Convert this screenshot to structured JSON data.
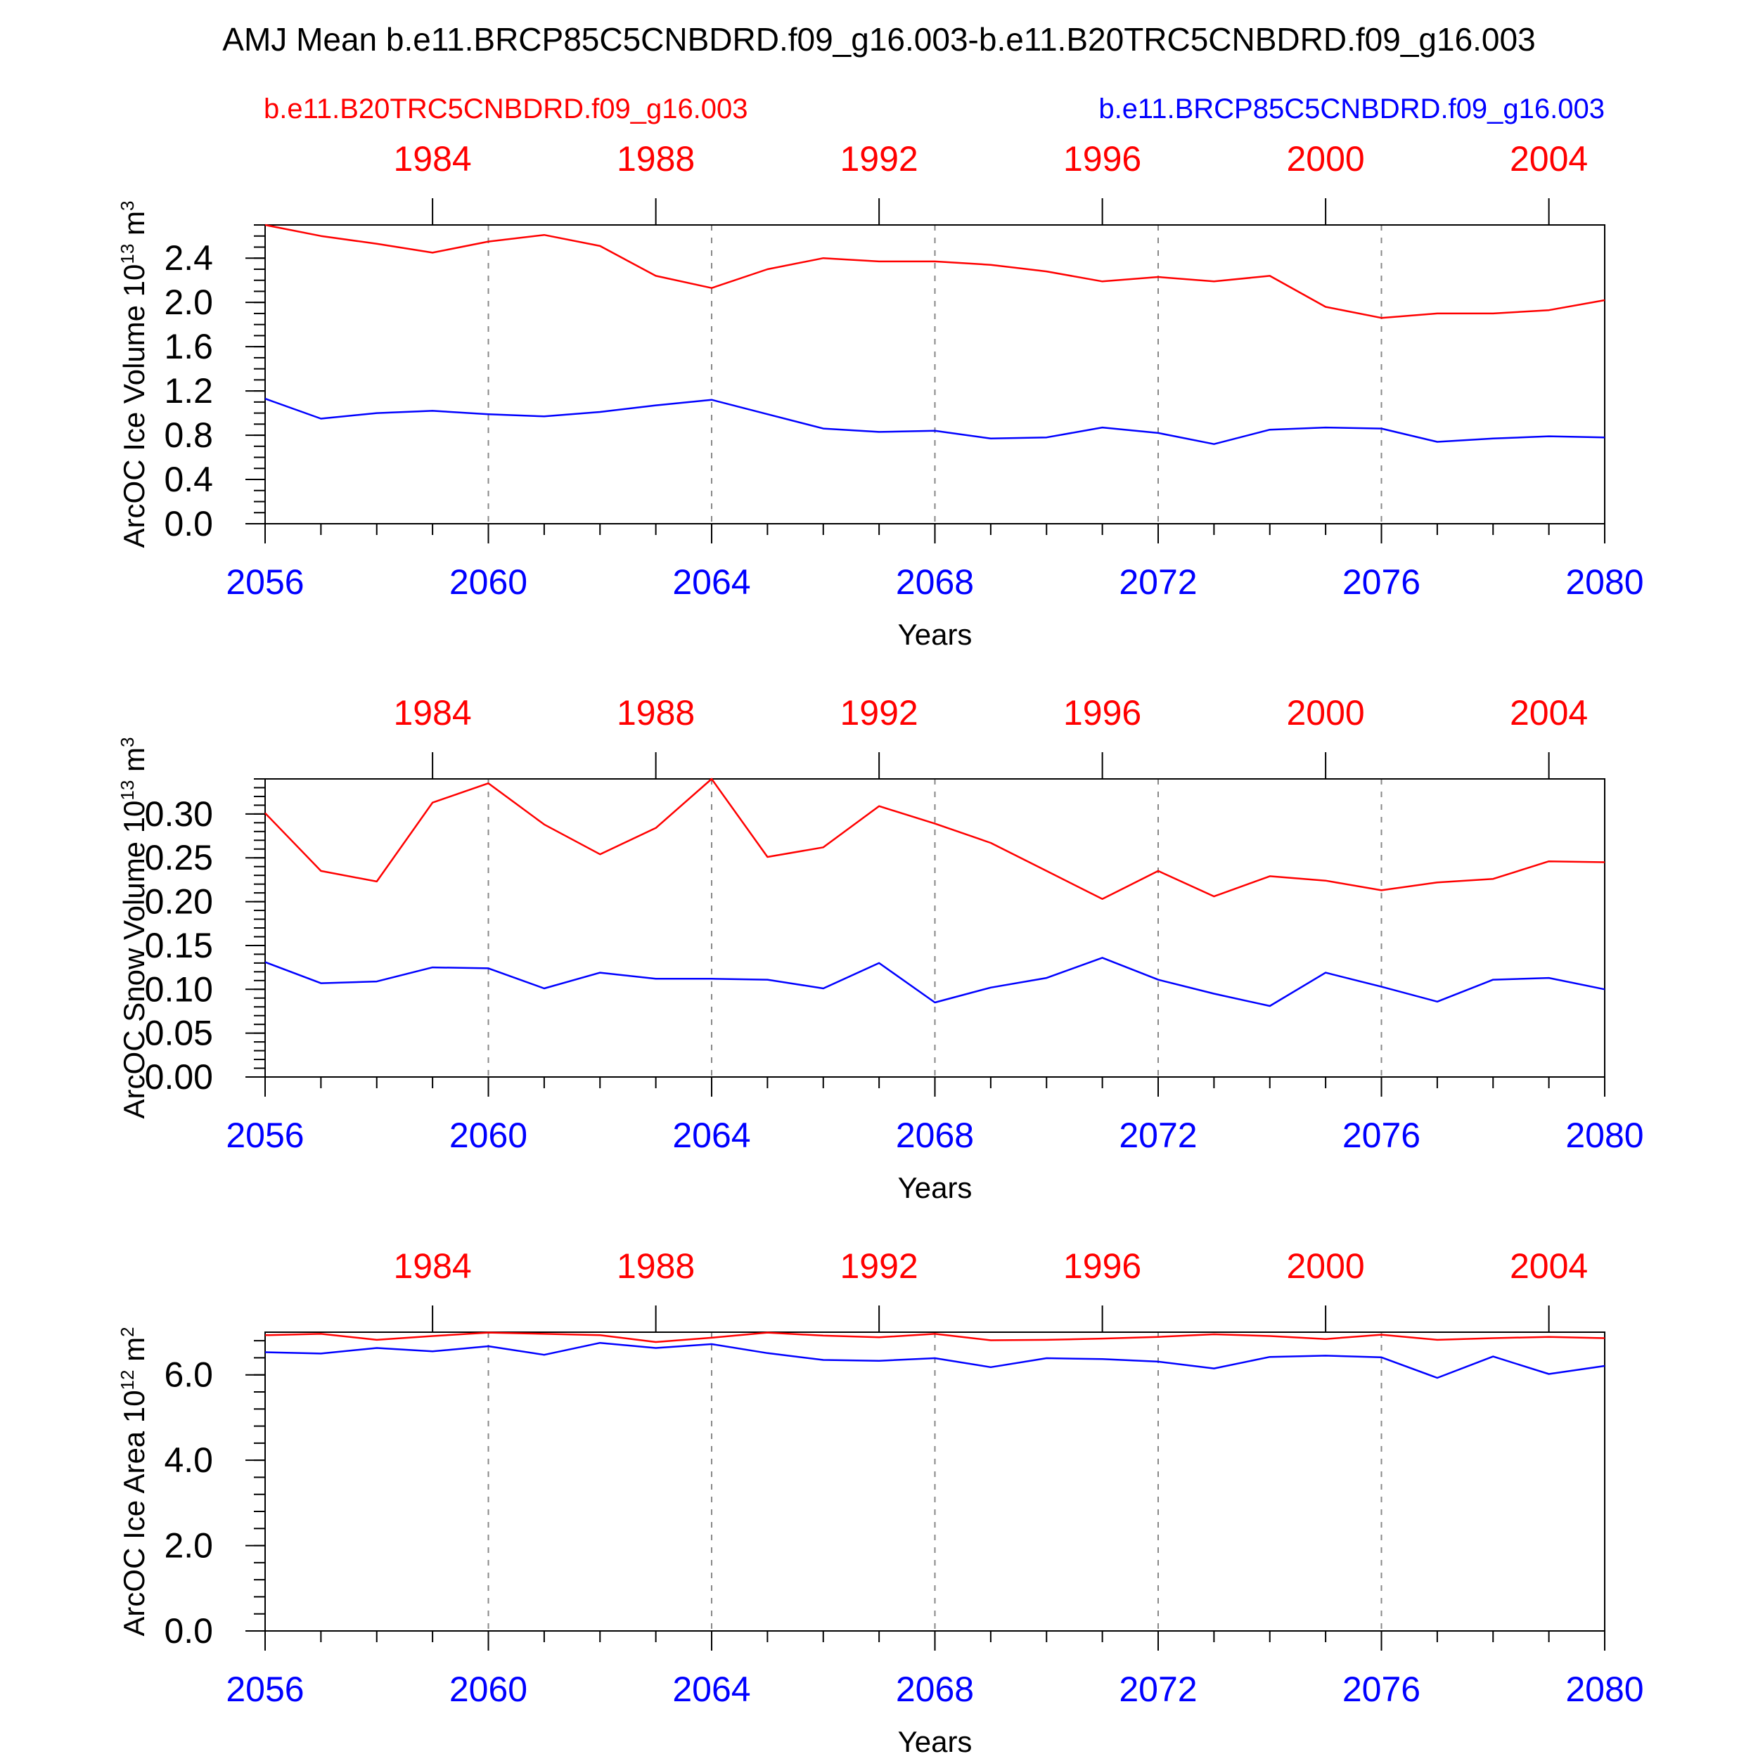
{
  "title": "AMJ Mean b.e11.BRCP85C5CNBDRD.f09_g16.003-b.e11.B20TRC5CNBDRD.f09_g16.003",
  "legend": {
    "red_label": "b.e11.B20TRC5CNBDRD.f09_g16.003",
    "blue_label": "b.e11.BRCP85C5CNBDRD.f09_g16.003",
    "red_color": "#ff0000",
    "blue_color": "#0000ff"
  },
  "colors": {
    "red": "#ff0000",
    "blue": "#0000ff",
    "axis": "#000000",
    "grid": "#888888"
  },
  "chart_data": [
    {
      "type": "line",
      "ylabel": "ArcOC Ice Volume 10",
      "ylabel_exp": "13",
      "ylabel_unit": " m",
      "ylabel_unit_exp": "3",
      "xlabel": "Years",
      "xlim": [
        2056,
        2080
      ],
      "ylim": [
        0,
        2.7
      ],
      "yticks": [
        0.0,
        0.4,
        0.8,
        1.2,
        1.6,
        2.0,
        2.4
      ],
      "ytick_labels": [
        "0.0",
        "0.4",
        "0.8",
        "1.2",
        "1.6",
        "2.0",
        "2.4"
      ],
      "yminor_step": 0.1,
      "xticks_bottom": [
        2056,
        2060,
        2064,
        2068,
        2072,
        2076,
        2080
      ],
      "xtick_labels_bottom": [
        "2056",
        "2060",
        "2064",
        "2068",
        "2072",
        "2076",
        "2080"
      ],
      "xticks_top": [
        2059,
        2063,
        2067,
        2071,
        2075,
        2079
      ],
      "xtick_labels_top": [
        "1984",
        "1988",
        "1992",
        "1996",
        "2000",
        "2004"
      ],
      "grid_x": [
        2060,
        2064,
        2068,
        2072,
        2076
      ],
      "x": [
        2056,
        2057,
        2058,
        2059,
        2060,
        2061,
        2062,
        2063,
        2064,
        2065,
        2066,
        2067,
        2068,
        2069,
        2070,
        2071,
        2072,
        2073,
        2074,
        2075,
        2076,
        2077,
        2078,
        2079,
        2080
      ],
      "series": [
        {
          "name": "b.e11.B20TRC5CNBDRD.f09_g16.003",
          "color": "#ff0000",
          "values": [
            2.7,
            2.6,
            2.53,
            2.45,
            2.55,
            2.61,
            2.51,
            2.24,
            2.13,
            2.3,
            2.4,
            2.37,
            2.37,
            2.34,
            2.28,
            2.19,
            2.23,
            2.19,
            2.24,
            1.96,
            1.86,
            1.9,
            1.9,
            1.93,
            2.02
          ]
        },
        {
          "name": "b.e11.BRCP85C5CNBDRD.f09_g16.003",
          "color": "#0000ff",
          "values": [
            1.13,
            0.95,
            1.0,
            1.02,
            0.99,
            0.97,
            1.01,
            1.07,
            1.12,
            0.99,
            0.86,
            0.83,
            0.84,
            0.77,
            0.78,
            0.87,
            0.82,
            0.72,
            0.85,
            0.87,
            0.86,
            0.74,
            0.77,
            0.79,
            0.78
          ]
        }
      ]
    },
    {
      "type": "line",
      "ylabel": "ArcOC Snow Volume 10",
      "ylabel_exp": "13",
      "ylabel_unit": " m",
      "ylabel_unit_exp": "3",
      "xlabel": "Years",
      "xlim": [
        2056,
        2080
      ],
      "ylim": [
        0,
        0.34
      ],
      "yticks": [
        0.0,
        0.05,
        0.1,
        0.15,
        0.2,
        0.25,
        0.3
      ],
      "ytick_labels": [
        "0.00",
        "0.05",
        "0.10",
        "0.15",
        "0.20",
        "0.25",
        "0.30"
      ],
      "yminor_step": 0.01,
      "xticks_bottom": [
        2056,
        2060,
        2064,
        2068,
        2072,
        2076,
        2080
      ],
      "xtick_labels_bottom": [
        "2056",
        "2060",
        "2064",
        "2068",
        "2072",
        "2076",
        "2080"
      ],
      "xticks_top": [
        2059,
        2063,
        2067,
        2071,
        2075,
        2079
      ],
      "xtick_labels_top": [
        "1984",
        "1988",
        "1992",
        "1996",
        "2000",
        "2004"
      ],
      "grid_x": [
        2060,
        2064,
        2068,
        2072,
        2076
      ],
      "x": [
        2056,
        2057,
        2058,
        2059,
        2060,
        2061,
        2062,
        2063,
        2064,
        2065,
        2066,
        2067,
        2068,
        2069,
        2070,
        2071,
        2072,
        2073,
        2074,
        2075,
        2076,
        2077,
        2078,
        2079,
        2080
      ],
      "series": [
        {
          "name": "b.e11.B20TRC5CNBDRD.f09_g16.003",
          "color": "#ff0000",
          "values": [
            0.301,
            0.235,
            0.223,
            0.313,
            0.335,
            0.288,
            0.254,
            0.284,
            0.34,
            0.251,
            0.262,
            0.309,
            0.289,
            0.267,
            0.235,
            0.203,
            0.235,
            0.206,
            0.229,
            0.224,
            0.213,
            0.222,
            0.226,
            0.246,
            0.245
          ]
        },
        {
          "name": "b.e11.BRCP85C5CNBDRD.f09_g16.003",
          "color": "#0000ff",
          "values": [
            0.131,
            0.107,
            0.109,
            0.125,
            0.124,
            0.101,
            0.119,
            0.112,
            0.112,
            0.111,
            0.101,
            0.13,
            0.085,
            0.102,
            0.113,
            0.136,
            0.111,
            0.095,
            0.081,
            0.119,
            0.103,
            0.086,
            0.111,
            0.113,
            0.1
          ]
        }
      ]
    },
    {
      "type": "line",
      "ylabel": "ArcOC Ice Area 10",
      "ylabel_exp": "12",
      "ylabel_unit": " m",
      "ylabel_unit_exp": "2",
      "xlabel": "Years",
      "xlim": [
        2056,
        2080
      ],
      "ylim": [
        0,
        7.0
      ],
      "yticks": [
        0.0,
        2.0,
        4.0,
        6.0
      ],
      "ytick_labels": [
        "0.0",
        "2.0",
        "4.0",
        "6.0"
      ],
      "yminor_step": 0.4,
      "xticks_bottom": [
        2056,
        2060,
        2064,
        2068,
        2072,
        2076,
        2080
      ],
      "xtick_labels_bottom": [
        "2056",
        "2060",
        "2064",
        "2068",
        "2072",
        "2076",
        "2080"
      ],
      "xticks_top": [
        2059,
        2063,
        2067,
        2071,
        2075,
        2079
      ],
      "xtick_labels_top": [
        "1984",
        "1988",
        "1992",
        "1996",
        "2000",
        "2004"
      ],
      "grid_x": [
        2060,
        2064,
        2068,
        2072,
        2076
      ],
      "x": [
        2056,
        2057,
        2058,
        2059,
        2060,
        2061,
        2062,
        2063,
        2064,
        2065,
        2066,
        2067,
        2068,
        2069,
        2070,
        2071,
        2072,
        2073,
        2074,
        2075,
        2076,
        2077,
        2078,
        2079,
        2080
      ],
      "series": [
        {
          "name": "b.e11.B20TRC5CNBDRD.f09_g16.003",
          "color": "#ff0000",
          "values": [
            6.93,
            6.96,
            6.82,
            6.91,
            6.99,
            6.96,
            6.93,
            6.77,
            6.87,
            6.99,
            6.92,
            6.88,
            6.96,
            6.81,
            6.82,
            6.85,
            6.89,
            6.95,
            6.91,
            6.84,
            6.94,
            6.82,
            6.86,
            6.89,
            6.86
          ]
        },
        {
          "name": "b.e11.BRCP85C5CNBDRD.f09_g16.003",
          "color": "#0000ff",
          "values": [
            6.53,
            6.5,
            6.63,
            6.55,
            6.67,
            6.47,
            6.75,
            6.63,
            6.72,
            6.51,
            6.35,
            6.33,
            6.39,
            6.18,
            6.39,
            6.37,
            6.31,
            6.15,
            6.42,
            6.45,
            6.41,
            5.93,
            6.43,
            6.02,
            6.21
          ]
        }
      ]
    }
  ]
}
